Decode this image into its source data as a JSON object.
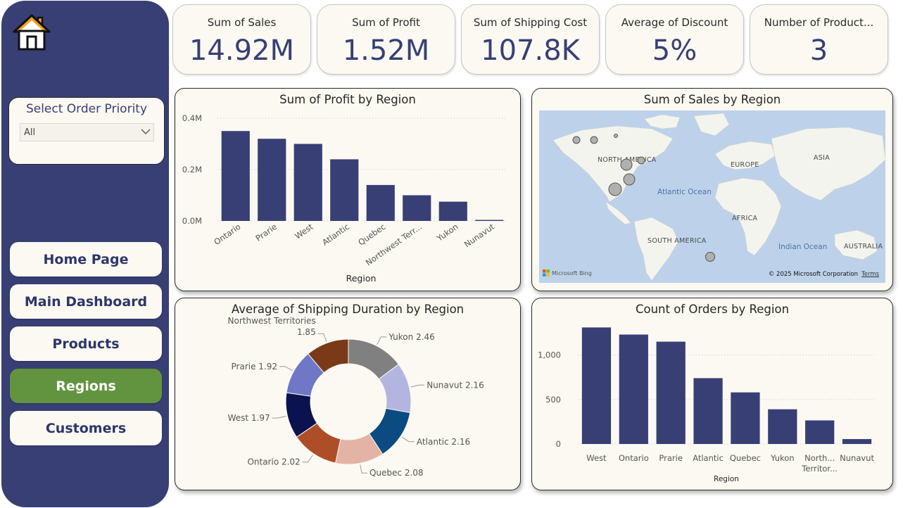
{
  "sidebar": {
    "slicer": {
      "title": "Select Order Priority",
      "value": "All"
    },
    "nav": [
      {
        "label": "Home Page",
        "active": false
      },
      {
        "label": "Main Dashboard",
        "active": false
      },
      {
        "label": "Products",
        "active": false
      },
      {
        "label": "Regions",
        "active": true
      },
      {
        "label": "Customers",
        "active": false
      }
    ]
  },
  "kpis": [
    {
      "label": "Sum of Sales",
      "value": "14.92M"
    },
    {
      "label": "Sum of Profit",
      "value": "1.52M"
    },
    {
      "label": "Sum of Shipping Cost",
      "value": "107.8K"
    },
    {
      "label": "Average of Discount",
      "value": "5%"
    },
    {
      "label": "Number of Product...",
      "value": "3"
    }
  ],
  "colors": {
    "sidebar": "#383f75",
    "bar": "#383f75",
    "active_nav": "#62943f",
    "panel_bg": "#fbf9f2",
    "map_water": "#bdd2ea"
  },
  "map": {
    "title": "Sum of Sales by Region",
    "continent_labels": [
      "NORTH AMERICA",
      "EUROPE",
      "ASIA",
      "AFRICA",
      "SOUTH AMERICA",
      "AUSTRALIA"
    ],
    "ocean_labels": [
      "Atlantic Ocean",
      "Indian Ocean"
    ],
    "bing": "Microsoft Bing",
    "copyright": "© 2025 Microsoft Corporation",
    "terms": "Terms"
  },
  "chart_data": [
    {
      "type": "bar",
      "title": "Sum of Profit by Region",
      "xlabel": "Region",
      "ylabel": "",
      "categories": [
        "Ontario",
        "Prarie",
        "West",
        "Atlantic",
        "Quebec",
        "Northwest Terr...",
        "Yukon",
        "Nunavut"
      ],
      "values": [
        0.35,
        0.32,
        0.3,
        0.24,
        0.14,
        0.1,
        0.075,
        0.004
      ],
      "yticks": [
        0,
        0.2,
        0.4
      ],
      "ytick_labels": [
        "0.0M",
        "0.2M",
        "0.4M"
      ],
      "ylim": [
        0,
        0.4
      ],
      "grid": true
    },
    {
      "type": "pie",
      "title": "Average of Shipping Duration by Region",
      "donut": true,
      "slices": [
        {
          "label": "Yukon 2.46",
          "value": 2.46,
          "color": "#808080"
        },
        {
          "label": "Nunavut 2.16",
          "value": 2.16,
          "color": "#b3b5e0"
        },
        {
          "label": "Atlantic 2.16",
          "value": 2.16,
          "color": "#0c4a82"
        },
        {
          "label": "Quebec 2.08",
          "value": 2.08,
          "color": "#e3b3a5"
        },
        {
          "label": "Ontario 2.02",
          "value": 2.02,
          "color": "#ad4e28"
        },
        {
          "label": "West 1.97",
          "value": 1.97,
          "color": "#0a134f"
        },
        {
          "label": "Prarie 1.92",
          "value": 1.92,
          "color": "#6f78c7"
        },
        {
          "label": "Northwest Territories",
          "label2": "1.85",
          "value": 1.85,
          "color": "#7a3a18"
        }
      ]
    },
    {
      "type": "bar",
      "title": "Count of Orders by Region",
      "xlabel": "Region",
      "ylabel": "",
      "categories": [
        "West",
        "Ontario",
        "Prarie",
        "Atlantic",
        "Quebec",
        "Yukon",
        "North...",
        "Nunavut"
      ],
      "category_lines2": [
        "",
        "",
        "",
        "",
        "",
        "",
        "Territor...",
        ""
      ],
      "values": [
        1310,
        1230,
        1150,
        740,
        580,
        390,
        265,
        55
      ],
      "yticks": [
        0,
        500,
        1000
      ],
      "ytick_labels": [
        "0",
        "500",
        "1,000"
      ],
      "ylim": [
        0,
        1400
      ],
      "grid": true
    }
  ]
}
